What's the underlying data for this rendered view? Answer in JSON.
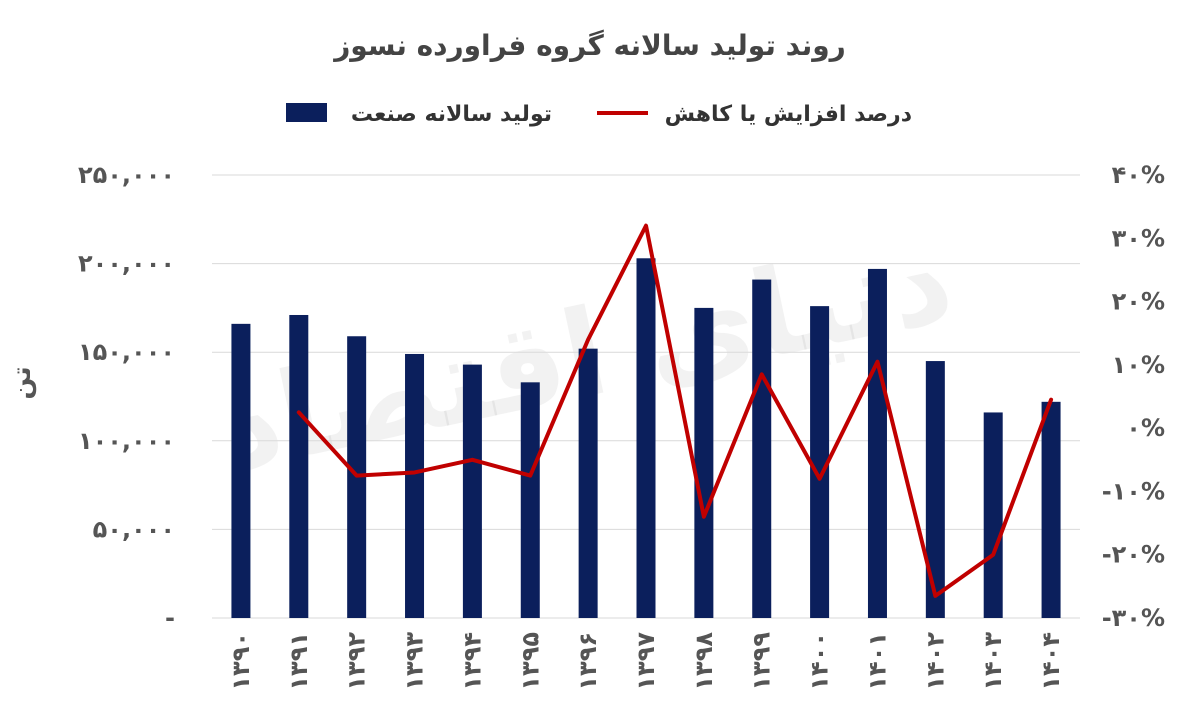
{
  "chart_data": {
    "type": "bar+line",
    "title": "روند تولید سالانه گروه فراورده نسوز",
    "legend": [
      {
        "label": "تولید سالانه صنعت",
        "color": "#0b1f5c",
        "kind": "bar"
      },
      {
        "label": "درصد افزایش یا کاهش",
        "color": "#c00000",
        "kind": "line"
      }
    ],
    "legend_position": "top",
    "ylabel_left": "تن",
    "categories": [
      "۱۳۹۰",
      "۱۳۹۱",
      "۱۳۹۲",
      "۱۳۹۳",
      "۱۳۹۴",
      "۱۳۹۵",
      "۱۳۹۶",
      "۱۳۹۷",
      "۱۳۹۸",
      "۱۳۹۹",
      "۱۴۰۰",
      "۱۴۰۱",
      "۱۴۰۲",
      "۱۴۰۳",
      "۱۴۰۴"
    ],
    "series": [
      {
        "name": "تولید سالانه صنعت",
        "axis": "left",
        "type": "bar",
        "color": "#0b1f5c",
        "values": [
          166000,
          171000,
          159000,
          149000,
          143000,
          133000,
          152000,
          203000,
          175000,
          191000,
          176000,
          197000,
          145000,
          116000,
          122000
        ]
      },
      {
        "name": "درصد افزایش یا کاهش",
        "axis": "right",
        "type": "line",
        "color": "#c00000",
        "values": [
          null,
          2.5,
          -7.5,
          -7,
          -5,
          -7.5,
          14,
          32,
          -14,
          8.5,
          -8,
          10.5,
          -26.5,
          -20,
          4.5
        ]
      }
    ],
    "left_axis": {
      "min": 0,
      "max": 250000,
      "tick_values": [
        0,
        50000,
        100000,
        150000,
        200000,
        250000
      ],
      "tick_labels": [
        "-",
        "۵۰,۰۰۰",
        "۱۰۰,۰۰۰",
        "۱۵۰,۰۰۰",
        "۲۰۰,۰۰۰",
        "۲۵۰,۰۰۰"
      ]
    },
    "right_axis": {
      "min": -30,
      "max": 40,
      "tick_values": [
        -30,
        -20,
        -10,
        0,
        10,
        20,
        30,
        40
      ],
      "tick_labels": [
        "-۳۰%",
        "-۲۰%",
        "-۱۰%",
        "۰%",
        "۱۰%",
        "۲۰%",
        "۳۰%",
        "۴۰%"
      ]
    },
    "grid": true,
    "watermark": "دنیای اقتصاد"
  }
}
